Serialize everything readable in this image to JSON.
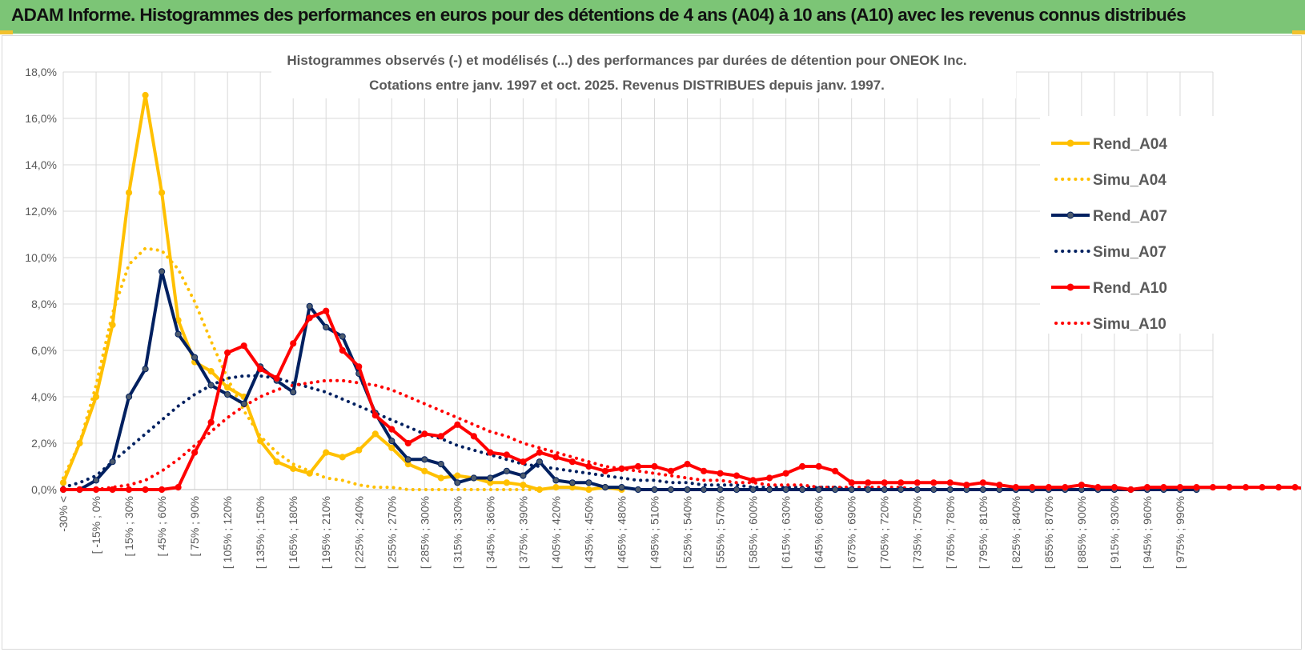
{
  "header": {
    "title": "ADAM Informe. Histogrammes des performances en euros pour des détentions de 4 ans (A04) à 10 ans (A10) avec les revenus connus distribués"
  },
  "colors": {
    "header_bg": "#7cc576",
    "accent": "#f2c12e",
    "a04": "#ffc000",
    "a07": "#002060",
    "a07_marker": "#4d5b6e",
    "a10": "#ff0000",
    "grid": "#d9d9d9",
    "text": "#595959"
  },
  "chart_data": {
    "type": "line",
    "title_line1": "Histogrammes observés (-) et modélisés (...) des performances par durées de détention pour ONEOK Inc.",
    "title_line2": "Cotations entre janv. 1997 et oct. 2025.  Revenus DISTRIBUES depuis janv. 1997.",
    "ylim": [
      0,
      18
    ],
    "yticks": [
      "0,0%",
      "2,0%",
      "4,0%",
      "6,0%",
      "8,0%",
      "10,0%",
      "12,0%",
      "14,0%",
      "16,0%",
      "18,0%"
    ],
    "grid": true,
    "legend_position": "right",
    "x_labels": [
      "-30% <",
      "[ -15% ; 0% ",
      "[ 15% ; 30% ",
      "[ 45% ; 60% ",
      "[ 75% ; 90% ",
      "[ 105% ; 120% ",
      "[ 135% ; 150% ",
      "[ 165% ; 180% ",
      "[ 195% ; 210% ",
      "[ 225% ; 240% ",
      "[ 255% ; 270% ",
      "[ 285% ; 300% ",
      "[ 315% ; 330% ",
      "[ 345% ; 360% ",
      "[ 375% ; 390% ",
      "[ 405% ; 420% ",
      "[ 435% ; 450% ",
      "[ 465% ; 480% ",
      "[ 495% ; 510% ",
      "[ 525% ; 540% ",
      "[ 555% ; 570% ",
      "[ 585% ; 600% ",
      "[ 615% ; 630% ",
      "[ 645% ; 660% ",
      "[ 675% ; 690% ",
      "[ 705% ; 720% ",
      "[ 735% ; 750% ",
      "[ 765% ; 780% ",
      "[ 795% ; 810% ",
      "[ 825% ; 840% ",
      "[ 855% ; 870% ",
      "[ 885% ; 900% ",
      "[ 915% ; 930% ",
      "[ 945% ; 960% ",
      "[ 975% ; 990% "
    ],
    "series": [
      {
        "name": "Rend_A04",
        "style": "solid",
        "markers": true,
        "color": "#ffc000",
        "values": [
          0.3,
          2.0,
          4.0,
          7.1,
          12.8,
          17.0,
          12.8,
          7.3,
          5.5,
          5.1,
          4.4,
          4.0,
          2.1,
          1.2,
          0.9,
          0.7,
          1.6,
          1.4,
          1.7,
          2.4,
          1.8,
          1.1,
          0.8,
          0.5,
          0.6,
          0.5,
          0.3,
          0.3,
          0.2,
          0.0,
          0.1,
          0.1,
          0.0,
          0.1,
          0.0
        ]
      },
      {
        "name": "Simu_A04",
        "style": "dotted",
        "markers": false,
        "color": "#ffc000",
        "values": [
          0.5,
          2.0,
          4.5,
          7.6,
          9.7,
          10.4,
          10.3,
          9.5,
          8.1,
          6.4,
          4.8,
          3.4,
          2.3,
          1.6,
          1.1,
          0.8,
          0.5,
          0.4,
          0.2,
          0.1,
          0.1,
          0.0,
          0.0,
          0.0,
          0.0,
          0.0,
          0.0,
          0.0,
          0.0,
          0.0
        ]
      },
      {
        "name": "Rend_A07",
        "style": "solid",
        "markers": true,
        "color": "#002060",
        "values": [
          0.0,
          0.0,
          0.4,
          1.2,
          4.0,
          5.2,
          9.4,
          6.7,
          5.7,
          4.5,
          4.1,
          3.7,
          5.3,
          4.7,
          4.2,
          7.9,
          7.0,
          6.6,
          5.0,
          3.3,
          2.1,
          1.3,
          1.3,
          1.1,
          0.3,
          0.5,
          0.5,
          0.8,
          0.6,
          1.2,
          0.4,
          0.3,
          0.3,
          0.1,
          0.1,
          0.0,
          0.0,
          0.0,
          0.0,
          0.0,
          0.0,
          0.0,
          0.0,
          0.0,
          0.0,
          0.0,
          0.0,
          0.0,
          0.0,
          0.0,
          0.0,
          0.0,
          0.0,
          0.0,
          0.0,
          0.0,
          0.0,
          0.0,
          0.0,
          0.0,
          0.0,
          0.0,
          0.0,
          0.0,
          0.0,
          0.0,
          0.0,
          0.0,
          0.0,
          0.0
        ]
      },
      {
        "name": "Simu_A07",
        "style": "dotted",
        "markers": false,
        "color": "#002060",
        "values": [
          0.1,
          0.3,
          0.6,
          1.2,
          1.8,
          2.4,
          3.0,
          3.6,
          4.1,
          4.5,
          4.8,
          4.9,
          4.9,
          4.8,
          4.6,
          4.4,
          4.2,
          3.9,
          3.6,
          3.3,
          3.0,
          2.7,
          2.4,
          2.2,
          1.9,
          1.7,
          1.5,
          1.3,
          1.1,
          1.0,
          0.9,
          0.8,
          0.7,
          0.6,
          0.5,
          0.4,
          0.4,
          0.3,
          0.3,
          0.2,
          0.2,
          0.2,
          0.1,
          0.1,
          0.1,
          0.1,
          0.1,
          0.1,
          0.0,
          0.0
        ]
      },
      {
        "name": "Rend_A10",
        "style": "solid",
        "markers": true,
        "color": "#ff0000",
        "values": [
          0.0,
          0.0,
          0.0,
          0.0,
          0.0,
          0.0,
          0.0,
          0.1,
          1.6,
          2.9,
          5.9,
          6.2,
          5.2,
          4.8,
          6.3,
          7.4,
          7.7,
          6.0,
          5.3,
          3.2,
          2.6,
          2.0,
          2.4,
          2.3,
          2.8,
          2.3,
          1.6,
          1.5,
          1.2,
          1.6,
          1.4,
          1.2,
          1.0,
          0.8,
          0.9,
          1.0,
          1.0,
          0.8,
          1.1,
          0.8,
          0.7,
          0.6,
          0.4,
          0.5,
          0.7,
          1.0,
          1.0,
          0.8,
          0.3,
          0.3,
          0.3,
          0.3,
          0.3,
          0.3,
          0.3,
          0.2,
          0.3,
          0.2,
          0.1,
          0.1,
          0.1,
          0.1,
          0.2,
          0.1,
          0.1,
          0.0,
          0.1,
          0.1,
          0.1,
          0.1,
          0.1,
          0.1,
          0.1,
          0.1,
          0.1,
          0.1,
          0.0,
          0.1,
          0.2
        ]
      },
      {
        "name": "Simu_A10",
        "style": "dotted",
        "markers": false,
        "color": "#ff0000",
        "values": [
          0.0,
          0.0,
          0.0,
          0.1,
          0.2,
          0.4,
          0.8,
          1.3,
          1.9,
          2.5,
          3.1,
          3.6,
          4.0,
          4.3,
          4.5,
          4.6,
          4.7,
          4.7,
          4.6,
          4.5,
          4.3,
          4.0,
          3.7,
          3.4,
          3.1,
          2.8,
          2.5,
          2.3,
          2.0,
          1.8,
          1.6,
          1.4,
          1.2,
          1.0,
          0.9,
          0.8,
          0.7,
          0.6,
          0.5,
          0.4,
          0.4,
          0.3,
          0.3,
          0.2,
          0.2,
          0.2,
          0.1,
          0.1,
          0.1,
          0.1,
          0.1,
          0.1,
          0.0,
          0.0,
          0.0,
          0.0,
          0.0,
          0.0,
          0.0,
          0.0,
          0.0,
          0.0
        ]
      }
    ]
  }
}
